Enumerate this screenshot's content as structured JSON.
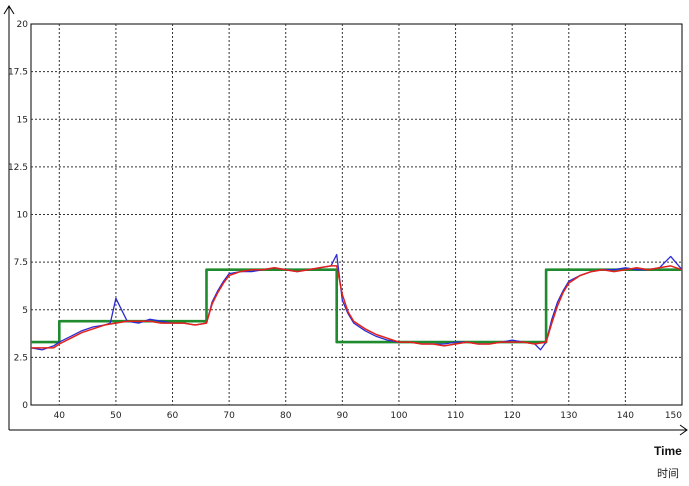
{
  "chart_data": {
    "type": "line",
    "xlabel": "Time",
    "xlabel_secondary": "时间",
    "ylabel": "",
    "xlim": [
      35,
      150
    ],
    "ylim": [
      0,
      20
    ],
    "x_ticks": [
      "40",
      "50",
      "60",
      "70",
      "80",
      "90",
      "100",
      "110",
      "120",
      "130",
      "140",
      "150"
    ],
    "y_ticks": [
      "0",
      "2.5",
      "5",
      "7.5",
      "10",
      "12.5",
      "15",
      "17.5",
      "20"
    ],
    "grid": true,
    "legend": "none",
    "series": [
      {
        "kind": "setpoint-step",
        "color": "#1f8a2e",
        "x": [
          35,
          40,
          40,
          66,
          66,
          89,
          89,
          126,
          126,
          150
        ],
        "y": [
          3.3,
          3.3,
          4.4,
          4.4,
          7.1,
          7.1,
          3.3,
          3.3,
          7.1,
          7.1
        ]
      },
      {
        "kind": "measured-blue",
        "color": "#2b2bd6",
        "x": [
          35,
          37,
          39,
          40,
          42,
          44,
          46,
          48,
          49,
          50,
          52,
          54,
          56,
          58,
          60,
          62,
          64,
          66,
          67,
          68,
          69,
          70,
          72,
          74,
          76,
          78,
          80,
          82,
          84,
          86,
          88,
          89,
          90,
          91,
          92,
          94,
          96,
          98,
          100,
          102,
          104,
          106,
          108,
          110,
          112,
          114,
          116,
          118,
          120,
          122,
          124,
          125,
          126,
          127,
          128,
          129,
          130,
          132,
          134,
          136,
          138,
          140,
          142,
          144,
          146,
          148,
          150
        ],
        "y": [
          3.0,
          2.9,
          3.1,
          3.3,
          3.6,
          3.9,
          4.1,
          4.2,
          4.3,
          5.6,
          4.4,
          4.3,
          4.5,
          4.4,
          4.3,
          4.3,
          4.2,
          4.3,
          5.4,
          6.0,
          6.5,
          6.9,
          7.0,
          7.0,
          7.1,
          7.2,
          7.1,
          7.0,
          7.1,
          7.2,
          7.3,
          7.9,
          5.5,
          4.8,
          4.3,
          3.9,
          3.6,
          3.4,
          3.3,
          3.3,
          3.2,
          3.2,
          3.2,
          3.3,
          3.3,
          3.2,
          3.2,
          3.3,
          3.4,
          3.3,
          3.2,
          2.9,
          3.3,
          4.5,
          5.4,
          6.0,
          6.5,
          6.8,
          7.0,
          7.1,
          7.1,
          7.2,
          7.1,
          7.1,
          7.2,
          7.8,
          7.1
        ]
      },
      {
        "kind": "measured-red",
        "color": "#e3231b",
        "x": [
          35,
          37,
          39,
          40,
          42,
          44,
          46,
          48,
          50,
          52,
          54,
          56,
          58,
          60,
          62,
          64,
          66,
          67,
          68,
          69,
          70,
          72,
          74,
          76,
          78,
          80,
          82,
          84,
          86,
          88,
          89,
          90,
          91,
          92,
          94,
          96,
          98,
          100,
          102,
          104,
          106,
          108,
          110,
          112,
          114,
          116,
          118,
          120,
          122,
          124,
          126,
          127,
          128,
          129,
          130,
          132,
          134,
          136,
          138,
          140,
          142,
          144,
          146,
          148,
          150
        ],
        "y": [
          3.0,
          3.0,
          3.0,
          3.2,
          3.5,
          3.8,
          4.0,
          4.2,
          4.3,
          4.4,
          4.4,
          4.4,
          4.3,
          4.3,
          4.3,
          4.2,
          4.3,
          5.3,
          5.9,
          6.4,
          6.8,
          7.0,
          7.1,
          7.1,
          7.2,
          7.1,
          7.0,
          7.1,
          7.2,
          7.3,
          7.3,
          5.8,
          4.9,
          4.4,
          4.0,
          3.7,
          3.5,
          3.3,
          3.3,
          3.2,
          3.2,
          3.1,
          3.2,
          3.3,
          3.2,
          3.2,
          3.3,
          3.3,
          3.3,
          3.2,
          3.3,
          4.3,
          5.2,
          5.9,
          6.4,
          6.8,
          7.0,
          7.1,
          7.0,
          7.1,
          7.2,
          7.1,
          7.2,
          7.3,
          7.1
        ]
      }
    ]
  }
}
